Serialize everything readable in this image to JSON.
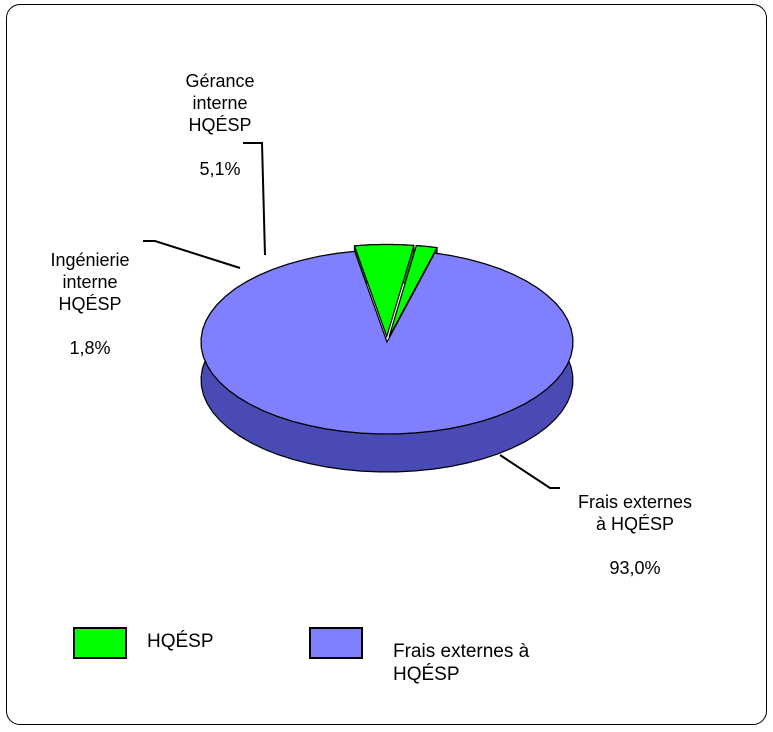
{
  "chart_data": {
    "type": "pie",
    "slices": [
      {
        "label": "Frais externes\nà HQÉSP",
        "pct_text": "93,0%",
        "value": 93.0,
        "color": "#8080ff",
        "side": "#4a4ab5",
        "dark": "#2a2a6a"
      },
      {
        "label": "Gérance\ninterne\nHQÉSP",
        "pct_text": "5,1%",
        "value": 5.1,
        "color": "#00ff00",
        "side": "#00a000",
        "dark": "#006000"
      },
      {
        "label": "Ingénierie\ninterne\nHQÉSP",
        "pct_text": "1,8%",
        "value": 1.8,
        "color": "#00ff00",
        "side": "#00a000",
        "dark": "#006000"
      }
    ],
    "legend": [
      {
        "label": "HQÉSP",
        "color": "#00ff00"
      },
      {
        "label": "Frais externes à\nHQÉSP",
        "color": "#8080ff"
      }
    ]
  }
}
